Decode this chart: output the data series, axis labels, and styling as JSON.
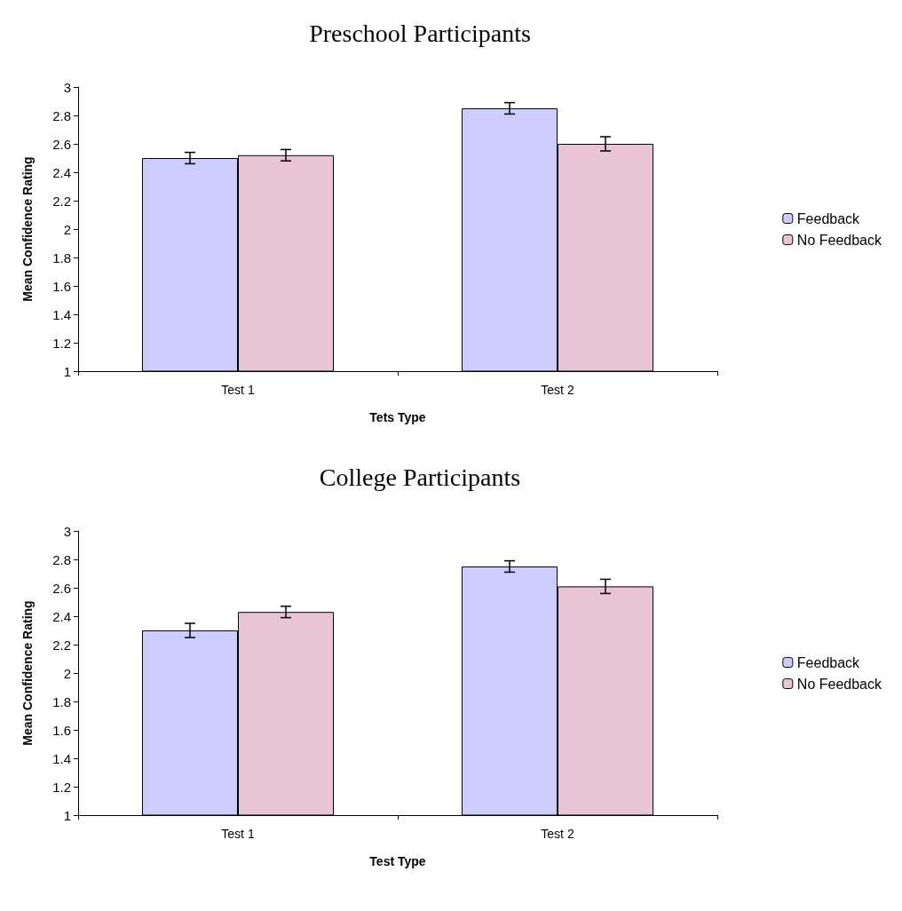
{
  "chart_data": [
    {
      "type": "bar",
      "title": "Preschool Participants",
      "xlabel": "Tets Type",
      "ylabel": "Mean Confidence Rating",
      "categories": [
        "Test 1",
        "Test 2"
      ],
      "series": [
        {
          "name": "Feedback",
          "color": "#ccccff",
          "values": [
            2.5,
            2.85
          ],
          "errors": [
            0.04,
            0.04
          ]
        },
        {
          "name": "No Feedback",
          "color": "#e8c4d4",
          "values": [
            2.52,
            2.6
          ],
          "errors": [
            0.04,
            0.05
          ]
        }
      ],
      "ylim": [
        1,
        3
      ],
      "yticks": [
        1,
        1.2,
        1.4,
        1.6,
        1.8,
        2,
        2.2,
        2.4,
        2.6,
        2.8,
        3
      ],
      "grid": false,
      "legend": "right"
    },
    {
      "type": "bar",
      "title": "College Participants",
      "xlabel": "Test Type",
      "ylabel": "Mean Confidence Rating",
      "categories": [
        "Test 1",
        "Test 2"
      ],
      "series": [
        {
          "name": "Feedback",
          "color": "#ccccff",
          "values": [
            2.3,
            2.75
          ],
          "errors": [
            0.05,
            0.04
          ]
        },
        {
          "name": "No Feedback",
          "color": "#e8c4d4",
          "values": [
            2.43,
            2.61
          ],
          "errors": [
            0.04,
            0.05
          ]
        }
      ],
      "ylim": [
        1,
        3
      ],
      "yticks": [
        1,
        1.2,
        1.4,
        1.6,
        1.8,
        2,
        2.2,
        2.4,
        2.6,
        2.8,
        3
      ],
      "grid": false,
      "legend": "right"
    }
  ]
}
